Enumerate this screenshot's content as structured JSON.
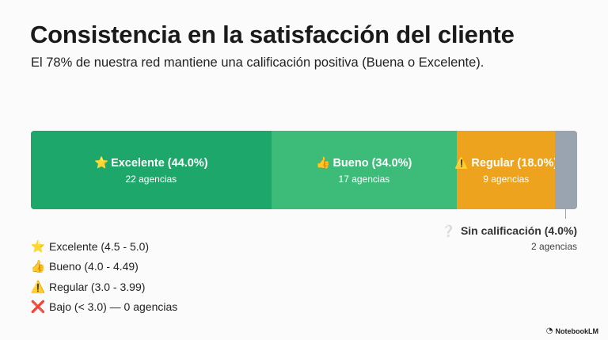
{
  "title": "Consistencia en la satisfacción del cliente",
  "subtitle": "El 78% de nuestra red mantiene una calificación positiva (Buena o Excelente).",
  "chart_data": {
    "type": "bar",
    "orientation": "horizontal-stacked",
    "unit": "%",
    "categories": [
      "Excelente",
      "Bueno",
      "Regular",
      "Sin calificación"
    ],
    "values": [
      44.0,
      34.0,
      18.0,
      4.0
    ],
    "counts": [
      22,
      17,
      9,
      2
    ],
    "segments": [
      {
        "name": "Excelente",
        "icon": "star-icon",
        "label": "Excelente (44.0%)",
        "count_label": "22 agencias",
        "value": 44.0,
        "color": "#1ea76b",
        "text_color": "#ffffff"
      },
      {
        "name": "Bueno",
        "icon": "thumbs-up-icon",
        "label": "Bueno (34.0%)",
        "count_label": "17 agencias",
        "value": 34.0,
        "color": "#3dbb78",
        "text_color": "#ffffff"
      },
      {
        "name": "Regular",
        "icon": "warning-icon",
        "label": "Regular (18.0%)",
        "count_label": "9 agencias",
        "value": 18.0,
        "color": "#eda31e",
        "text_color": "#ffffff"
      },
      {
        "name": "Sin calificación",
        "icon": "question-icon",
        "label": "Sin calificación (4.0%)",
        "count_label": "2 agencias",
        "value": 4.0,
        "color": "#9aa3b0",
        "text_color": "#333333"
      }
    ]
  },
  "legend": [
    {
      "icon": "star-icon",
      "glyph": "⭐",
      "label": "Excelente (4.5 - 5.0)"
    },
    {
      "icon": "thumbs-up-icon",
      "glyph": "👍",
      "label": "Bueno (4.0 - 4.49)"
    },
    {
      "icon": "warning-icon",
      "glyph": "⚠️",
      "label": "Regular (3.0 - 3.99)"
    },
    {
      "icon": "cross-icon",
      "glyph": "❌",
      "label": "Bajo (< 3.0) — 0 agencias"
    }
  ],
  "icons": {
    "star-icon": "⭐",
    "thumbs-up-icon": "👍",
    "warning-icon": "⚠️",
    "question-icon": "❔",
    "cross-icon": "❌"
  },
  "brand": "NotebookLM"
}
